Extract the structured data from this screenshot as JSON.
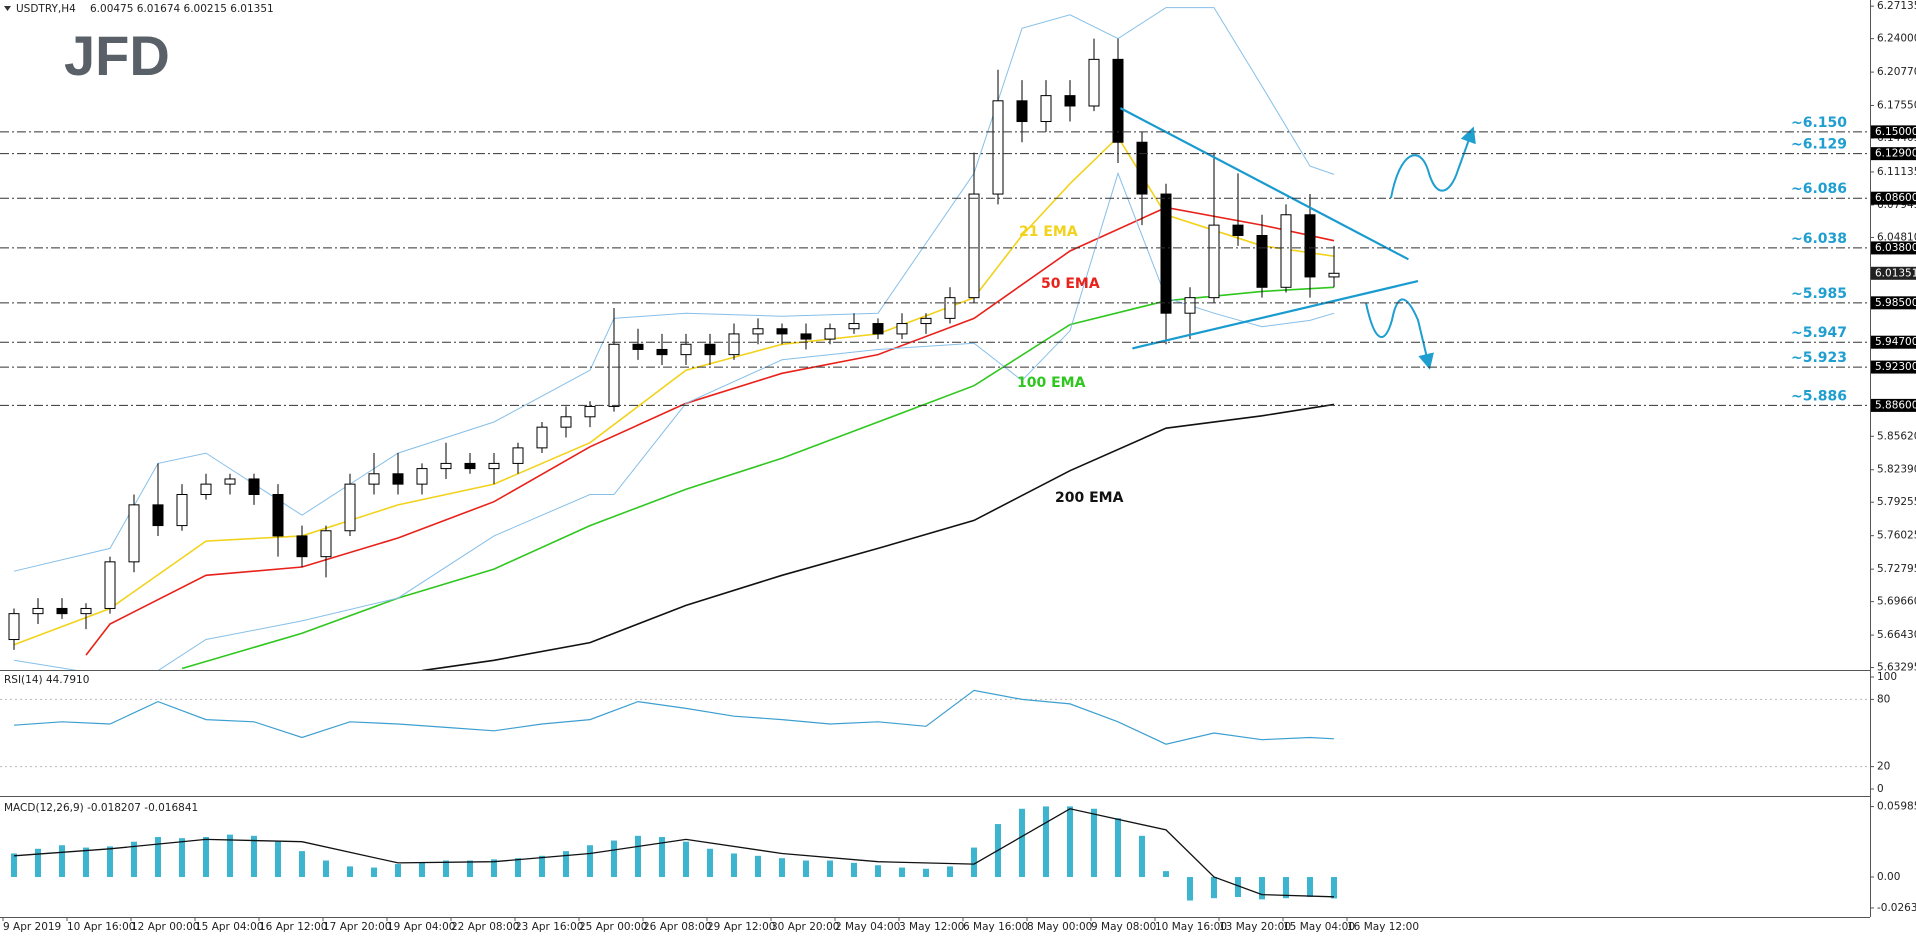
{
  "header": {
    "symbol": "USDTRY,H4",
    "ohlc": "6.00475 6.01674 6.00215 6.01351"
  },
  "logo": "JFD",
  "x_labels": [
    "9 Apr 2019",
    "10 Apr 16:00",
    "12 Apr 00:00",
    "15 Apr 04:00",
    "16 Apr 12:00",
    "17 Apr 20:00",
    "19 Apr 04:00",
    "22 Apr 08:00",
    "23 Apr 16:00",
    "25 Apr 00:00",
    "26 Apr 08:00",
    "29 Apr 12:00",
    "30 Apr 20:00",
    "2 May 04:00",
    "3 May 12:00",
    "6 May 16:00",
    "8 May 00:00",
    "9 May 08:00",
    "10 May 16:00",
    "13 May 20:00",
    "15 May 04:00",
    "16 May 12:00"
  ],
  "chart_data": [
    {
      "type": "candlestick",
      "ylim": [
        5.6306,
        6.2773
      ],
      "yticks": [
        6.27135,
        {
          "value": 6.24,
          "label": "6.24000"
        },
        {
          "value": 6.2077,
          "label": "6.20770"
        },
        {
          "value": 6.1755,
          "label": "6.17550"
        },
        6.14405,
        6.11135,
        6.07945,
        {
          "value": 6.0481,
          "label": "6.04810"
        },
        {
          "value": 5.8562,
          "label": "5.85620"
        },
        {
          "value": 5.8239,
          "label": "5.82390"
        },
        5.79255,
        5.76025,
        5.72795,
        {
          "value": 5.6966,
          "label": "5.69660"
        },
        {
          "value": 5.6643,
          "label": "5.66430"
        },
        5.63295
      ],
      "open": [
        5.66,
        5.685,
        5.69,
        5.685,
        5.69,
        5.735,
        5.79,
        5.77,
        5.8,
        5.81,
        5.815,
        5.8,
        5.76,
        5.74,
        5.765,
        5.81,
        5.82,
        5.81,
        5.825,
        5.83,
        5.825,
        5.83,
        5.845,
        5.865,
        5.875,
        5.885,
        5.945,
        5.94,
        5.935,
        5.945,
        5.935,
        5.955,
        5.96,
        5.955,
        5.95,
        5.96,
        5.965,
        5.955,
        5.965,
        5.97,
        5.99,
        6.09,
        6.18,
        6.16,
        6.185,
        6.175,
        6.22,
        6.14,
        6.09,
        5.975,
        5.99,
        6.06,
        6.05,
        6.0,
        6.07,
        6.01
      ],
      "high": [
        5.69,
        5.7,
        5.7,
        5.695,
        5.74,
        5.8,
        5.83,
        5.81,
        5.82,
        5.82,
        5.82,
        5.81,
        5.77,
        5.77,
        5.82,
        5.84,
        5.84,
        5.83,
        5.85,
        5.84,
        5.84,
        5.85,
        5.87,
        5.885,
        5.89,
        5.98,
        5.96,
        5.955,
        5.955,
        5.955,
        5.965,
        5.97,
        5.965,
        5.965,
        5.965,
        5.975,
        5.97,
        5.975,
        5.975,
        6.0,
        6.13,
        6.21,
        6.2,
        6.2,
        6.2,
        6.24,
        6.24,
        6.15,
        6.1,
        6.0,
        6.13,
        6.11,
        6.07,
        6.08,
        6.09,
        6.04
      ],
      "low": [
        5.65,
        5.675,
        5.68,
        5.67,
        5.685,
        5.725,
        5.76,
        5.765,
        5.795,
        5.8,
        5.79,
        5.74,
        5.73,
        5.72,
        5.76,
        5.8,
        5.8,
        5.8,
        5.815,
        5.82,
        5.81,
        5.82,
        5.84,
        5.855,
        5.865,
        5.88,
        5.93,
        5.925,
        5.925,
        5.925,
        5.93,
        5.945,
        5.945,
        5.94,
        5.945,
        5.955,
        5.95,
        5.95,
        5.955,
        5.965,
        5.985,
        6.08,
        6.14,
        6.15,
        6.16,
        6.17,
        6.12,
        6.06,
        5.945,
        5.95,
        5.985,
        6.04,
        5.99,
        5.995,
        5.99,
        6.0
      ],
      "close": [
        5.685,
        5.69,
        5.685,
        5.69,
        5.735,
        5.79,
        5.77,
        5.8,
        5.81,
        5.815,
        5.8,
        5.76,
        5.74,
        5.765,
        5.81,
        5.82,
        5.81,
        5.825,
        5.83,
        5.825,
        5.83,
        5.845,
        5.865,
        5.875,
        5.885,
        5.945,
        5.94,
        5.935,
        5.945,
        5.935,
        5.955,
        5.96,
        5.955,
        5.95,
        5.96,
        5.965,
        5.955,
        5.965,
        5.97,
        5.99,
        6.09,
        6.18,
        6.16,
        6.185,
        6.175,
        6.22,
        6.14,
        6.09,
        5.975,
        5.99,
        6.06,
        6.05,
        6.0,
        6.07,
        6.01,
        6.01351
      ],
      "series": [
        {
          "name": "21 EMA",
          "color": "#f2d21b",
          "x": [
            0,
            4,
            8,
            12,
            16,
            20,
            24,
            28,
            32,
            36,
            40,
            42,
            44,
            46,
            48,
            52,
            55
          ],
          "values": [
            5.655,
            5.69,
            5.755,
            5.76,
            5.79,
            5.81,
            5.85,
            5.92,
            5.945,
            5.955,
            5.99,
            6.05,
            6.1,
            6.145,
            6.07,
            6.04,
            6.03
          ]
        },
        {
          "name": "50 EMA",
          "color": "#e8211a",
          "x": [
            3,
            4,
            8,
            12,
            16,
            20,
            24,
            28,
            32,
            36,
            40,
            44,
            48,
            52,
            55
          ],
          "values": [
            5.645,
            5.675,
            5.722,
            5.73,
            5.758,
            5.793,
            5.846,
            5.888,
            5.917,
            5.935,
            5.97,
            6.035,
            6.077,
            6.06,
            6.045
          ]
        },
        {
          "name": "100 EMA",
          "color": "#2fc71f",
          "x": [
            7,
            12,
            16,
            20,
            24,
            28,
            32,
            36,
            40,
            44,
            48,
            52,
            55
          ],
          "values": [
            5.632,
            5.666,
            5.7,
            5.728,
            5.77,
            5.805,
            5.835,
            5.87,
            5.905,
            5.964,
            5.987,
            5.996,
            6.0
          ]
        },
        {
          "name": "200 EMA",
          "color": "#111111",
          "x": [
            17,
            20,
            24,
            28,
            32,
            36,
            40,
            44,
            48,
            52,
            55
          ],
          "values": [
            5.63,
            5.64,
            5.657,
            5.693,
            5.722,
            5.748,
            5.775,
            5.823,
            5.864,
            5.876,
            5.887
          ]
        },
        {
          "color": "#86bfe8",
          "x": [
            0,
            4,
            6,
            8,
            12,
            16,
            20,
            24,
            25,
            28,
            32,
            36,
            40,
            42,
            44,
            46,
            48,
            50,
            52,
            54,
            55
          ],
          "values": [
            5.726,
            5.748,
            5.83,
            5.84,
            5.78,
            5.84,
            5.87,
            5.92,
            5.97,
            5.975,
            5.972,
            5.975,
            6.11,
            6.25,
            6.263,
            6.24,
            6.27,
            6.27,
            6.194,
            6.117,
            6.109
          ]
        },
        {
          "color": "#86bfe8",
          "x": [
            0,
            4,
            6,
            8,
            12,
            16,
            20,
            24,
            25,
            28,
            32,
            36,
            40,
            42,
            44,
            46,
            48,
            50,
            52,
            54,
            55
          ],
          "values": [
            5.64,
            5.625,
            5.63,
            5.66,
            5.678,
            5.7,
            5.76,
            5.8,
            5.8,
            5.888,
            5.93,
            5.94,
            5.946,
            5.91,
            5.958,
            6.11,
            5.99,
            5.975,
            5.962,
            5.968,
            5.975
          ]
        }
      ],
      "trendlines": [
        {
          "color": "#1a9bd0",
          "x": [
            46.1,
            58.1
          ],
          "values": [
            6.173,
            6.027
          ]
        },
        {
          "color": "#1a9bd0",
          "x": [
            46.6,
            58.5
          ],
          "values": [
            5.941,
            6.006
          ]
        }
      ],
      "levels": [
        {
          "value": 6.15,
          "label": "~6.150",
          "axis_label": "6.15000"
        },
        {
          "value": 6.129,
          "label": "~6.129",
          "axis_label": "6.12900"
        },
        {
          "value": 6.086,
          "label": "~6.086",
          "axis_label": "6.08600"
        },
        {
          "value": 6.038,
          "label": "~6.038",
          "axis_label": "6.03800"
        },
        {
          "value": 5.985,
          "label": "~5.985",
          "axis_label": "5.98500"
        },
        {
          "value": 5.947,
          "label": "~5.947",
          "axis_label": "5.94700"
        },
        {
          "value": 5.923,
          "label": "~5.923",
          "axis_label": "5.92300"
        },
        {
          "value": 5.886,
          "label": "~5.886",
          "axis_label": "5.88600"
        }
      ],
      "last": {
        "value": 6.01351,
        "label": "6.01351"
      }
    },
    {
      "type": "line",
      "title": "RSI(14) 44.7910",
      "ylim": [
        0,
        100
      ],
      "yticks": [
        100,
        80,
        20,
        0
      ],
      "levels": [
        80,
        20
      ],
      "series": [
        {
          "color": "#3d9fd0",
          "x": [
            0,
            2,
            4,
            6,
            8,
            10,
            12,
            14,
            16,
            18,
            20,
            22,
            24,
            26,
            28,
            30,
            32,
            34,
            36,
            38,
            40,
            42,
            44,
            46,
            48,
            50,
            52,
            54,
            55
          ],
          "values": [
            57,
            60,
            58,
            78,
            62,
            60,
            46,
            60,
            58,
            55,
            52,
            58,
            62,
            78,
            72,
            65,
            62,
            58,
            60,
            56,
            88,
            80,
            76,
            60,
            40,
            50,
            44,
            46,
            44.791
          ]
        }
      ]
    },
    {
      "type": "macd",
      "title": "MACD(12,26,9) -0.018207 -0.016841",
      "ylim": [
        -0.034,
        0.068
      ],
      "yticks": [
        0.059853,
        {
          "value": 0,
          "label": "0.00"
        },
        -0.026322
      ],
      "histogram": {
        "color": "#3db4d0",
        "values": [
          0.02,
          0.024,
          0.027,
          0.025,
          0.026,
          0.03,
          0.034,
          0.033,
          0.034,
          0.036,
          0.035,
          0.03,
          0.022,
          0.014,
          0.009,
          0.008,
          0.011,
          0.012,
          0.014,
          0.014,
          0.015,
          0.016,
          0.018,
          0.022,
          0.027,
          0.031,
          0.035,
          0.034,
          0.03,
          0.024,
          0.02,
          0.018,
          0.016,
          0.014,
          0.014,
          0.012,
          0.01,
          0.008,
          0.007,
          0.009,
          0.025,
          0.045,
          0.058,
          0.06,
          0.06,
          0.058,
          0.05,
          0.035,
          0.005,
          -0.02,
          -0.018,
          -0.017,
          -0.019,
          -0.018,
          -0.017,
          -0.018207
        ]
      },
      "signal": {
        "color": "#111111",
        "x": [
          0,
          4,
          8,
          12,
          16,
          20,
          24,
          28,
          32,
          36,
          40,
          44,
          48,
          50,
          52,
          55
        ],
        "values": [
          0.018,
          0.024,
          0.032,
          0.03,
          0.012,
          0.013,
          0.02,
          0.032,
          0.02,
          0.013,
          0.011,
          0.058,
          0.04,
          0.0,
          -0.015,
          -0.016841
        ]
      }
    }
  ]
}
